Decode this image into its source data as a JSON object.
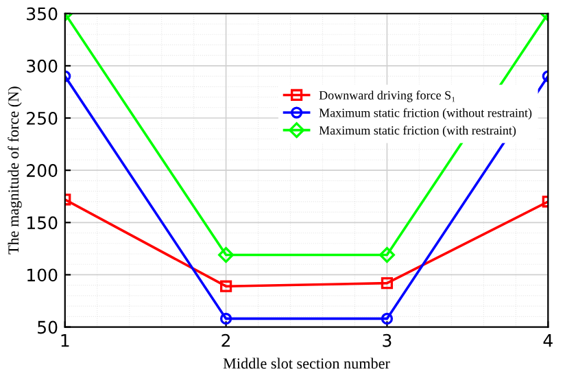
{
  "chart_data": {
    "type": "line",
    "xlabel": "Middle slot section number",
    "ylabel": "The magnitude of force (N)",
    "x": [
      1,
      2,
      3,
      4
    ],
    "xlim": [
      1,
      4
    ],
    "xticks": [
      1,
      2,
      3,
      4
    ],
    "ylim": [
      50,
      350
    ],
    "yticks": [
      50,
      100,
      150,
      200,
      250,
      300,
      350
    ],
    "grid": true,
    "legend": "right",
    "line_style": "solid",
    "series": [
      {
        "name": "Downward driving force S₁",
        "color": "#ff0000",
        "marker": "square",
        "values": [
          172,
          89,
          92,
          170
        ]
      },
      {
        "name": "Maximum static friction (without restraint)",
        "color": "#0000ff",
        "marker": "circle",
        "values": [
          290,
          58,
          58,
          290
        ]
      },
      {
        "name": "Maximum static friction (with restraint)",
        "color": "#00ff00",
        "marker": "diamond",
        "values": [
          350,
          119,
          119,
          350
        ]
      }
    ]
  }
}
